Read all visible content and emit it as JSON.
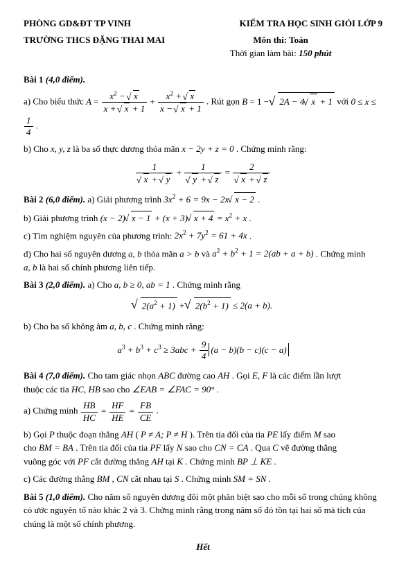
{
  "header": {
    "dept": "PHÒNG GD&ĐT TP VINH",
    "exam": "KIỂM TRA HỌC SINH GIỎI LỚP 9",
    "school": "TRƯỜNG THCS ĐẶNG THAI MAI",
    "subject_label": "Môn thi: Toán",
    "time_prefix": "Thời gian làm bài: ",
    "time_value": "150 phút"
  },
  "bai1": {
    "title": "Bài 1 ",
    "pts": "(4,0 điểm).",
    "a_pre": "a) Cho biểu thức  ",
    "a_mid": " . Rút gọn  ",
    "a_post": "  với  ",
    "a_end": " .",
    "b_pre": "b) Cho  ",
    "b_vars": "x, y, z",
    "b_mid": "  là ba số thực dương thỏa mãn  ",
    "b_eq": "x − 2y + z = 0",
    "b_post": " . Chứng minh rằng:"
  },
  "bai2": {
    "title": "Bài 2 ",
    "pts": "(6,0 điểm).",
    "a": " a) Giải phương trình  ",
    "b": "b) Giải phương trình  ",
    "c": "c) Tìm nghiệm nguyên của phương trình:  ",
    "d1": "d) Cho hai số nguyên dương  ",
    "d_ab": "a, b",
    "d2": "  thỏa  mãn  ",
    "d3": "  và  ",
    "d4": " . Chứng minh",
    "d5": "  là hai số chính phương liên tiếp."
  },
  "bai3": {
    "title": "Bài 3 ",
    "pts": "(2,0 điểm).",
    "a": " a) Cho  ",
    "a_cond": "a, b ≥ 0, ab = 1",
    "a_post": " . Chứng minh rằng",
    "b": "b) Cho ba số không âm  ",
    "b_abc": "a, b, c",
    "b_post": " . Chứng minh rằng:"
  },
  "bai4": {
    "title": "Bài  4 ",
    "pts": "(7,0 điểm).",
    "intro1": " Cho tam giác nhọn  ",
    "ABC": "ABC",
    "intro2": "  đường cao  ",
    "AH": "AH",
    "intro3": " . Gọi  ",
    "EF": "E, F",
    "intro4": "  là các điểm lần lượt",
    "intro5": "thuộc các tia  ",
    "HCHB": "HC, HB",
    "intro6": "  sao cho  ",
    "angles": "∠EAB = ∠FAC = 90°",
    "a": "a) Chứng minh  ",
    "b1": "b) Gọi  ",
    "P": "P",
    "b2": "  thuộc đoạn thẳng  ",
    "b3": "  ( ",
    "Pcond": "P ≠ A; P ≠ H",
    "b4": " ). Trên tia đối của tia  ",
    "PE": "PE",
    "b5": "  lấy điểm  ",
    "M": "M",
    "b6": "  sao",
    "b7": "cho  ",
    "BMBA": "BM = BA",
    "b8": " . Trên tia đối của tia  ",
    "PF": "PF",
    "b9": "  lấy  ",
    "N": "N",
    "b10": "  sao cho  ",
    "CNCA": "CN = CA",
    "b11": " . Qua  ",
    "C": "C",
    "b12": "  vẽ đường thẳng",
    "b13": "vuông góc với  ",
    "b14": "  cắt đường thẳng  ",
    "b15": "  tại  ",
    "K": "K",
    "b16": " . Chứng minh  ",
    "BPKE": "BP ⊥ KE",
    "c1": "c) Các đường thẳng  ",
    "BMCN": "BM , CN",
    "c2": "  cắt nhau tại  ",
    "S": "S",
    "c3": " . Chứng minh  ",
    "SMSN": "SM = SN"
  },
  "bai5": {
    "title": "Bài 5 ",
    "pts": "(1,0 điểm).",
    "text": " Cho năm số nguyên dương đôi một phân biệt sao cho mỗi số trong chúng không có ước nguyên tố nào khác 2 và 3. Chứng minh rằng trong năm số đó tồn tại hai số mà tích của chúng là một số chính phương."
  },
  "footer": "Hết"
}
